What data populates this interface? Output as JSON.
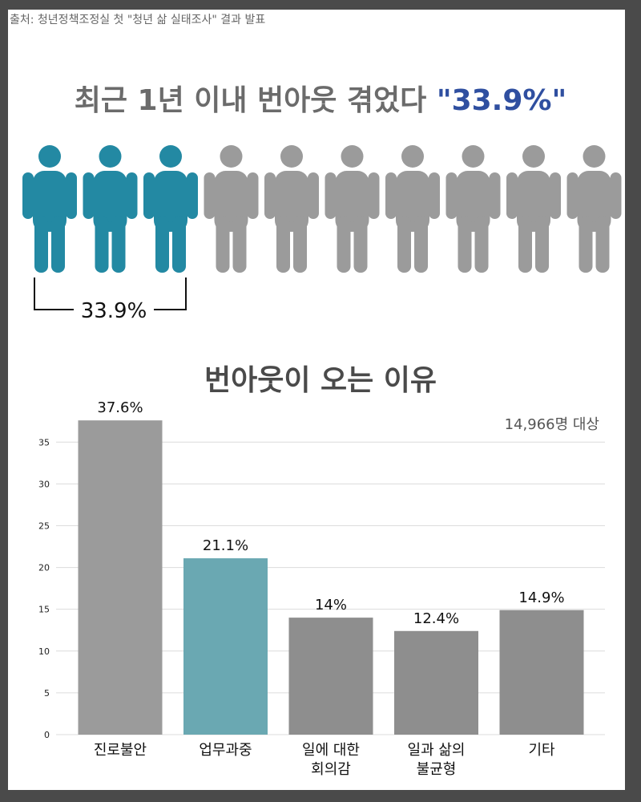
{
  "source": "출처: 청년정책조정실 첫 \"청년 삶 실태조사\" 결과 발표",
  "headline": {
    "prefix": "최근 1년 이내 번아웃 겪었다 ",
    "highlight": "\"33.9%\""
  },
  "pictogram": {
    "total_icons": 10,
    "highlighted_icons": 3,
    "highlight_color": "#2389a3",
    "base_color": "#9b9b9b",
    "bracket_label": "33.9%"
  },
  "section_title": "번아웃이 오는 이유",
  "sample_note": "14,966명 대상",
  "chart_data": {
    "type": "bar",
    "title": "번아웃이 오는 이유",
    "categories": [
      [
        "진로불안"
      ],
      [
        "업무과중"
      ],
      [
        "일에 대한",
        "회의감"
      ],
      [
        "일과 삶의",
        "불균형"
      ],
      [
        "기타"
      ]
    ],
    "values": [
      37.6,
      21.1,
      14,
      12.4,
      14.9
    ],
    "data_labels": [
      "37.6%",
      "21.1%",
      "14%",
      "12.4%",
      "14.9%"
    ],
    "bar_colors": [
      "#9b9b9b",
      "#6aa8b2",
      "#8e8e8e",
      "#8e8e8e",
      "#8e8e8e"
    ],
    "yticks": [
      0,
      5,
      10,
      15,
      20,
      25,
      30,
      35
    ],
    "ylim": [
      0,
      38
    ],
    "grid": true
  }
}
